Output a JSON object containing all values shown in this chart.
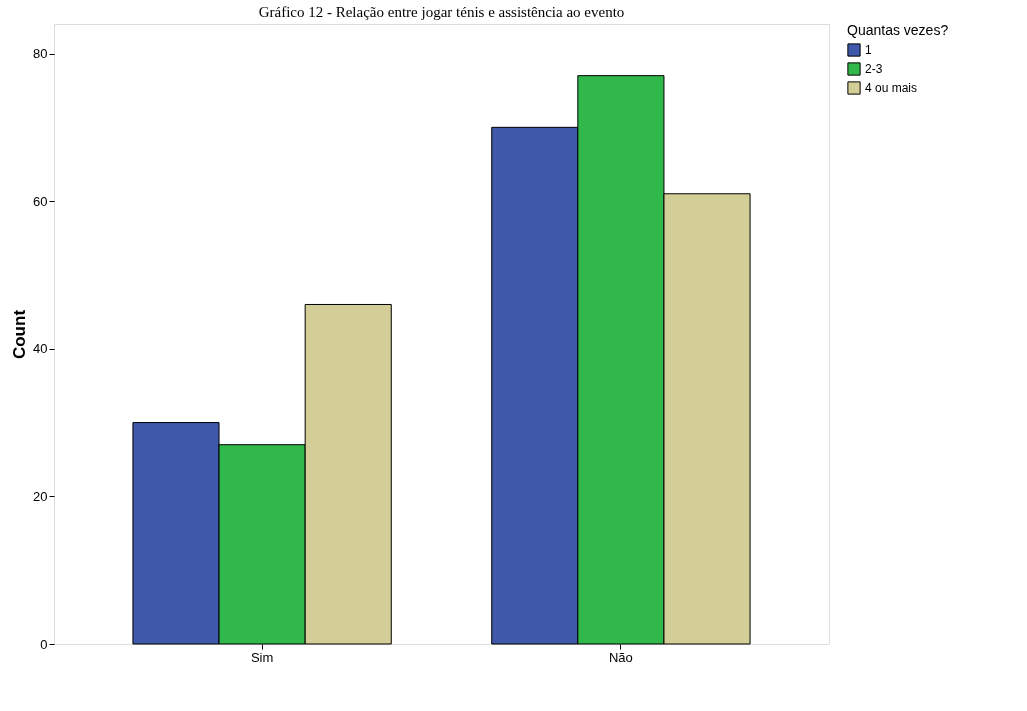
{
  "chart_data": {
    "type": "bar",
    "title": "Gráfico 12 - Relação entre jogar ténis e assistência ao evento",
    "ylabel": "Count",
    "legend_title": "Quantas vezes?",
    "categories": [
      "Sim",
      "Não"
    ],
    "series": [
      {
        "name": "1",
        "color": "#3f58aa",
        "values": [
          30,
          70
        ]
      },
      {
        "name": "2-3",
        "color": "#31b84a",
        "values": [
          27,
          77
        ]
      },
      {
        "name": "4 ou mais",
        "color": "#d3cd97",
        "values": [
          46,
          61
        ]
      }
    ],
    "ylim": [
      0,
      84
    ],
    "yticks": [
      0,
      20,
      40,
      60,
      80
    ],
    "grid": false,
    "legend": "top right"
  }
}
